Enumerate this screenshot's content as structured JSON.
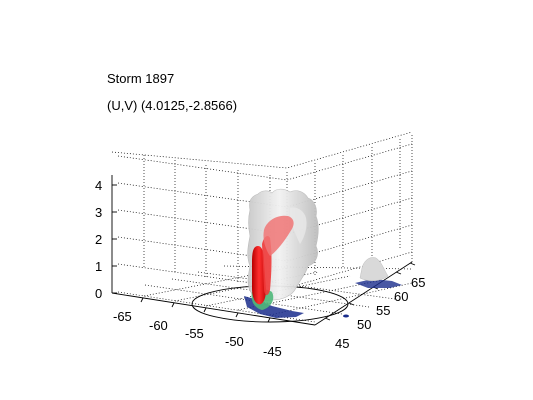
{
  "figure": {
    "title": "Storm 1897",
    "subtitle": "(U,V) (4.0125,-2.8566)"
  },
  "axes": {
    "z_ticks": [
      "0",
      "1",
      "2",
      "3",
      "4"
    ],
    "x_ticks": [
      "-65",
      "-60",
      "-55",
      "-50",
      "-45"
    ],
    "y_ticks": [
      "45",
      "50",
      "55",
      "60",
      "65"
    ]
  },
  "colors": {
    "background": "#ffffff",
    "gray_isosurface": "#d8d8d8",
    "red_isosurface": "#e01010",
    "green_isosurface": "#4fb87a",
    "blue_isosurface": "#1a2d8c",
    "grid": "#000000"
  }
}
